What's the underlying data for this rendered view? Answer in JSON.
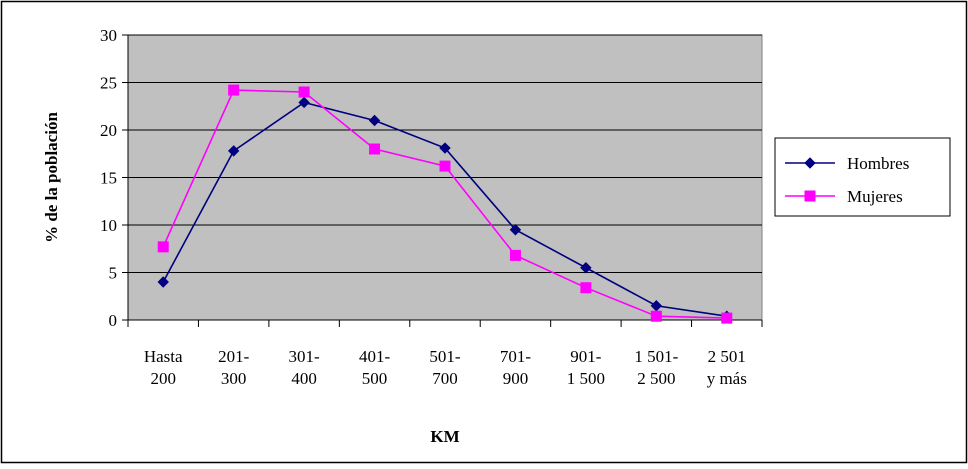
{
  "chart_data": {
    "type": "line",
    "title": "",
    "xlabel": "KM",
    "ylabel": "% de la población",
    "ylim": [
      0,
      30
    ],
    "yticks": [
      0,
      5,
      10,
      15,
      20,
      25,
      30
    ],
    "grid": "horizontal",
    "legend_position": "right",
    "plot_background": "#C0C0C0",
    "categories": [
      [
        "Hasta",
        "200"
      ],
      [
        "201-",
        "300"
      ],
      [
        "301-",
        "400"
      ],
      [
        "401-",
        "500"
      ],
      [
        "501-",
        "700"
      ],
      [
        "701-",
        "900"
      ],
      [
        "901-",
        "1 500"
      ],
      [
        "1 501-",
        "2 500"
      ],
      [
        "2 501",
        "y más"
      ]
    ],
    "series": [
      {
        "name": "Hombres",
        "color": "#000080",
        "marker": "diamond",
        "values": [
          4.0,
          17.8,
          22.9,
          21.0,
          18.1,
          9.5,
          5.5,
          1.5,
          0.4
        ]
      },
      {
        "name": "Mujeres",
        "color": "#FF00FF",
        "marker": "square",
        "values": [
          7.7,
          24.2,
          24.0,
          18.0,
          16.2,
          6.8,
          3.4,
          0.4,
          0.2
        ]
      }
    ]
  }
}
